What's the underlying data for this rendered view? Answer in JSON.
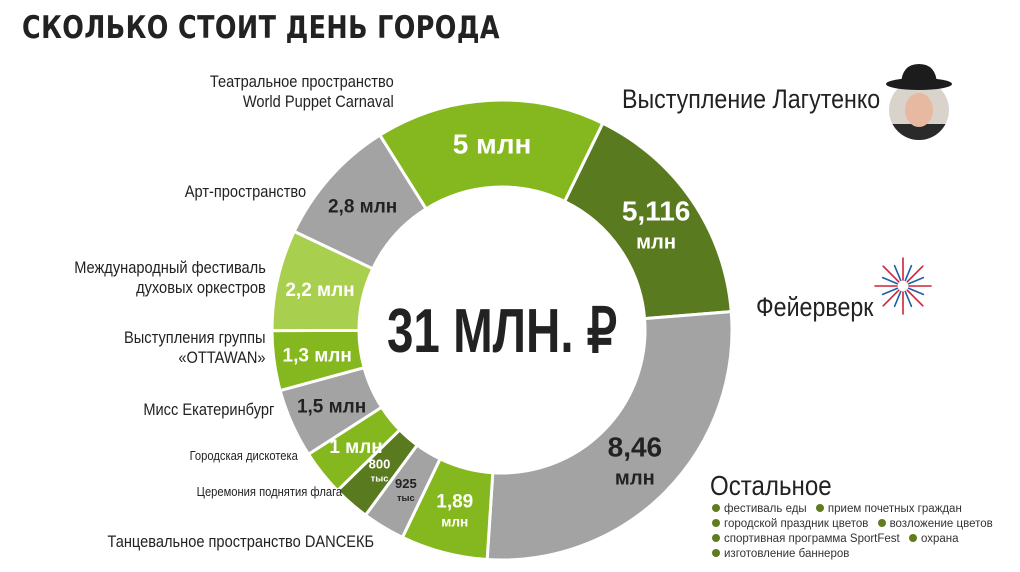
{
  "title": "СКОЛЬКО СТОИТ ДЕНЬ ГОРОДА",
  "center_label": "31 МЛН. ₽",
  "colors": {
    "green_bright": "#85b81e",
    "green_dark": "#5a7a1f",
    "green_light": "#a9cf4e",
    "gray": "#a3a3a3",
    "text": "#222222"
  },
  "icons": {
    "portrait": "person-portrait-icon",
    "fireworks": "fireworks-icon"
  },
  "chart_data": {
    "type": "pie",
    "donut": true,
    "total_label": "31 МЛН. ₽",
    "slices": [
      {
        "category": "Выступление Лагутенко",
        "value": 5,
        "value_label": "5 млн",
        "color": "#85b81e"
      },
      {
        "category": "Фейерверк",
        "value": 5.116,
        "value_label": "5,116 млн",
        "color": "#5a7a1f"
      },
      {
        "category": "Остальное",
        "value": 8.46,
        "value_label": "8,46 млн",
        "color": "#a3a3a3"
      },
      {
        "category": "Танцевальное пространство DANCEКБ",
        "value": 1.89,
        "value_label": "1,89 млн",
        "color": "#85b81e"
      },
      {
        "category": "Церемония поднятия флага",
        "value": 0.925,
        "value_label": "925 тыс",
        "color": "#a3a3a3"
      },
      {
        "category": "Городская дискотека",
        "value": 0.8,
        "value_label": "800 тыс",
        "color": "#5a7a1f"
      },
      {
        "category": "Мисс Екатеринбург",
        "value": 1,
        "value_label": "1 млн",
        "color": "#85b81e"
      },
      {
        "category": "Выступления группы «OTTAWAN»",
        "value": 1.5,
        "value_label": "1,5 млн",
        "color": "#a3a3a3"
      },
      {
        "category": "Международный фестиваль духовых оркестров",
        "value": 1.3,
        "value_label": "1,3 млн",
        "color": "#85b81e"
      },
      {
        "category": "Арт-пространство",
        "value": 2.2,
        "value_label": "2,2 млн",
        "color": "#a9cf4e"
      },
      {
        "category": "Театральное пространство World Puppet Carnaval",
        "value": 2.8,
        "value_label": "2,8 млн",
        "color": "#a3a3a3"
      }
    ]
  },
  "labels": {
    "lagutenko": "Выступление Лагутенко",
    "fireworks": "Фейерверк",
    "other": "Остальное",
    "theatre_1": "Театральное пространство",
    "theatre_2": "World Puppet Carnaval",
    "art": "Арт-пространство",
    "festival_1": "Международный фестиваль",
    "festival_2": "духовых оркестров",
    "ottawan_1": "Выступления группы",
    "ottawan_2": "«OTTAWAN»",
    "miss": "Мисс Екатеринбург",
    "disco": "Городская дискотека",
    "flag": "Церемония поднятия флага",
    "dance": "Танцевальное пространство DANCEКБ"
  },
  "other_items": [
    "фестиваль еды",
    "прием почетных граждан",
    "городской праздник цветов",
    "возложение цветов",
    "спортивная программа SportFest",
    "охрана",
    "изготовление баннеров"
  ]
}
